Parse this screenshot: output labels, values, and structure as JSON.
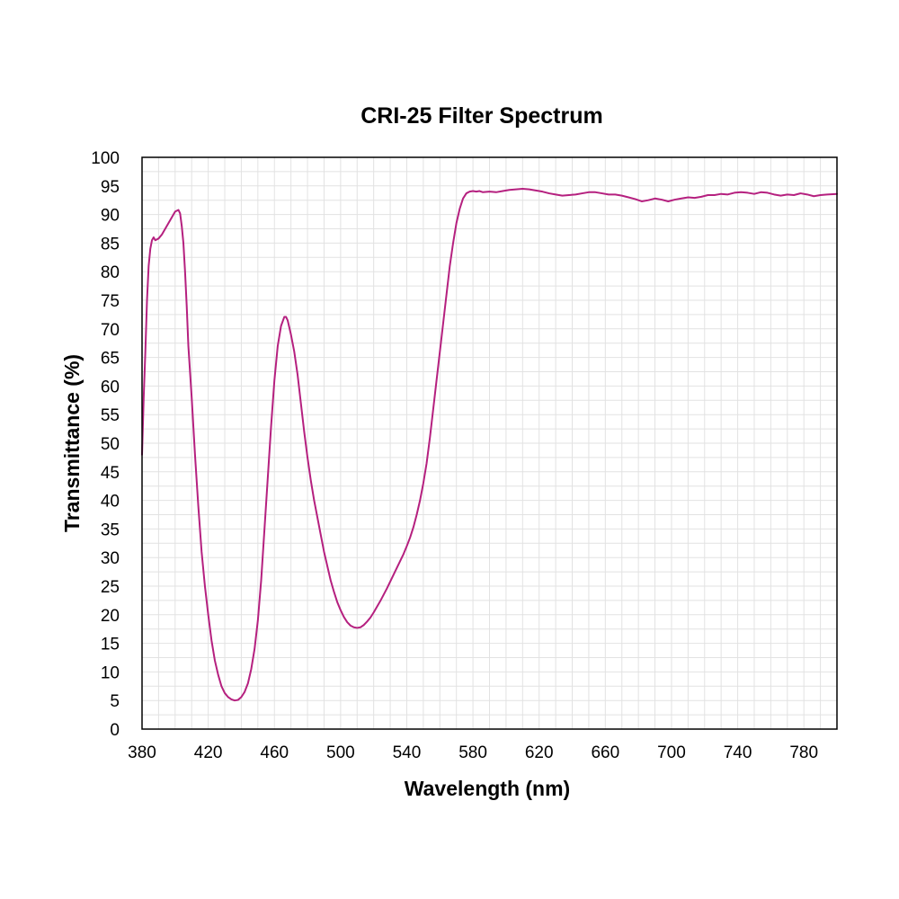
{
  "chart_data": {
    "type": "line",
    "title": "CRI-25 Filter Spectrum",
    "xlabel": "Wavelength (nm)",
    "ylabel": "Transmittance (%)",
    "xlim": [
      380,
      800
    ],
    "ylim": [
      0,
      100
    ],
    "x_ticks": [
      380,
      420,
      460,
      500,
      540,
      580,
      620,
      660,
      700,
      740,
      780
    ],
    "y_ticks": [
      0,
      5,
      10,
      15,
      20,
      25,
      30,
      35,
      40,
      45,
      50,
      55,
      60,
      65,
      70,
      75,
      80,
      85,
      90,
      95,
      100
    ],
    "x_minor_step": 10,
    "y_minor_step": 2.5,
    "grid": true,
    "legend": "none",
    "series": [
      {
        "color": "#b5207f",
        "points": [
          [
            380,
            48
          ],
          [
            381,
            58
          ],
          [
            382,
            66
          ],
          [
            383,
            75
          ],
          [
            384,
            81
          ],
          [
            385,
            84
          ],
          [
            386,
            85.5
          ],
          [
            387,
            86
          ],
          [
            388,
            85.5
          ],
          [
            390,
            85.8
          ],
          [
            392,
            86.5
          ],
          [
            394,
            87.5
          ],
          [
            396,
            88.5
          ],
          [
            398,
            89.5
          ],
          [
            400,
            90.5
          ],
          [
            402,
            90.8
          ],
          [
            403,
            90.2
          ],
          [
            404,
            88
          ],
          [
            405,
            85
          ],
          [
            406,
            80
          ],
          [
            407,
            74
          ],
          [
            408,
            67
          ],
          [
            410,
            58
          ],
          [
            412,
            48
          ],
          [
            414,
            39
          ],
          [
            416,
            31
          ],
          [
            418,
            25
          ],
          [
            420,
            20
          ],
          [
            422,
            15.5
          ],
          [
            424,
            12
          ],
          [
            426,
            9.5
          ],
          [
            428,
            7.5
          ],
          [
            430,
            6.3
          ],
          [
            432,
            5.6
          ],
          [
            434,
            5.2
          ],
          [
            436,
            5
          ],
          [
            438,
            5.1
          ],
          [
            440,
            5.6
          ],
          [
            442,
            6.5
          ],
          [
            444,
            8
          ],
          [
            446,
            10.5
          ],
          [
            448,
            14
          ],
          [
            450,
            19
          ],
          [
            452,
            26
          ],
          [
            454,
            35
          ],
          [
            456,
            44
          ],
          [
            458,
            53
          ],
          [
            460,
            61
          ],
          [
            462,
            67
          ],
          [
            464,
            70.5
          ],
          [
            466,
            72.1
          ],
          [
            467,
            72.1
          ],
          [
            468,
            71.5
          ],
          [
            470,
            69
          ],
          [
            472,
            66
          ],
          [
            474,
            62
          ],
          [
            476,
            57
          ],
          [
            478,
            52
          ],
          [
            480,
            47.5
          ],
          [
            482,
            43.5
          ],
          [
            484,
            40
          ],
          [
            486,
            37
          ],
          [
            488,
            34
          ],
          [
            490,
            31
          ],
          [
            492,
            28.5
          ],
          [
            494,
            26
          ],
          [
            496,
            24
          ],
          [
            498,
            22.2
          ],
          [
            500,
            20.8
          ],
          [
            502,
            19.6
          ],
          [
            504,
            18.7
          ],
          [
            506,
            18.1
          ],
          [
            508,
            17.8
          ],
          [
            510,
            17.7
          ],
          [
            512,
            17.8
          ],
          [
            514,
            18.2
          ],
          [
            516,
            18.8
          ],
          [
            518,
            19.5
          ],
          [
            520,
            20.4
          ],
          [
            522,
            21.4
          ],
          [
            524,
            22.4
          ],
          [
            526,
            23.5
          ],
          [
            528,
            24.6
          ],
          [
            530,
            25.8
          ],
          [
            532,
            27
          ],
          [
            534,
            28.2
          ],
          [
            536,
            29.4
          ],
          [
            538,
            30.6
          ],
          [
            540,
            32
          ],
          [
            542,
            33.5
          ],
          [
            544,
            35.3
          ],
          [
            546,
            37.5
          ],
          [
            548,
            40
          ],
          [
            550,
            43
          ],
          [
            552,
            46.5
          ],
          [
            554,
            51
          ],
          [
            556,
            56
          ],
          [
            558,
            61
          ],
          [
            560,
            66
          ],
          [
            562,
            71
          ],
          [
            564,
            76
          ],
          [
            566,
            81
          ],
          [
            568,
            85
          ],
          [
            570,
            88.5
          ],
          [
            572,
            91
          ],
          [
            574,
            92.8
          ],
          [
            576,
            93.7
          ],
          [
            578,
            94
          ],
          [
            580,
            94.1
          ],
          [
            582,
            94
          ],
          [
            584,
            94.1
          ],
          [
            586,
            93.9
          ],
          [
            590,
            94
          ],
          [
            594,
            93.9
          ],
          [
            598,
            94.1
          ],
          [
            602,
            94.3
          ],
          [
            606,
            94.4
          ],
          [
            610,
            94.5
          ],
          [
            614,
            94.4
          ],
          [
            618,
            94.2
          ],
          [
            622,
            94
          ],
          [
            626,
            93.7
          ],
          [
            630,
            93.5
          ],
          [
            634,
            93.3
          ],
          [
            638,
            93.4
          ],
          [
            642,
            93.5
          ],
          [
            646,
            93.7
          ],
          [
            650,
            93.9
          ],
          [
            654,
            93.9
          ],
          [
            658,
            93.7
          ],
          [
            662,
            93.5
          ],
          [
            666,
            93.5
          ],
          [
            670,
            93.3
          ],
          [
            674,
            93
          ],
          [
            678,
            92.7
          ],
          [
            682,
            92.3
          ],
          [
            686,
            92.5
          ],
          [
            690,
            92.8
          ],
          [
            694,
            92.6
          ],
          [
            698,
            92.3
          ],
          [
            702,
            92.6
          ],
          [
            706,
            92.8
          ],
          [
            710,
            93
          ],
          [
            714,
            92.9
          ],
          [
            718,
            93.1
          ],
          [
            722,
            93.4
          ],
          [
            726,
            93.4
          ],
          [
            730,
            93.6
          ],
          [
            734,
            93.5
          ],
          [
            738,
            93.8
          ],
          [
            742,
            93.9
          ],
          [
            746,
            93.8
          ],
          [
            750,
            93.6
          ],
          [
            754,
            93.9
          ],
          [
            758,
            93.8
          ],
          [
            762,
            93.5
          ],
          [
            766,
            93.3
          ],
          [
            770,
            93.5
          ],
          [
            774,
            93.4
          ],
          [
            778,
            93.7
          ],
          [
            782,
            93.5
          ],
          [
            786,
            93.2
          ],
          [
            790,
            93.4
          ],
          [
            794,
            93.5
          ],
          [
            800,
            93.6
          ]
        ]
      }
    ]
  }
}
